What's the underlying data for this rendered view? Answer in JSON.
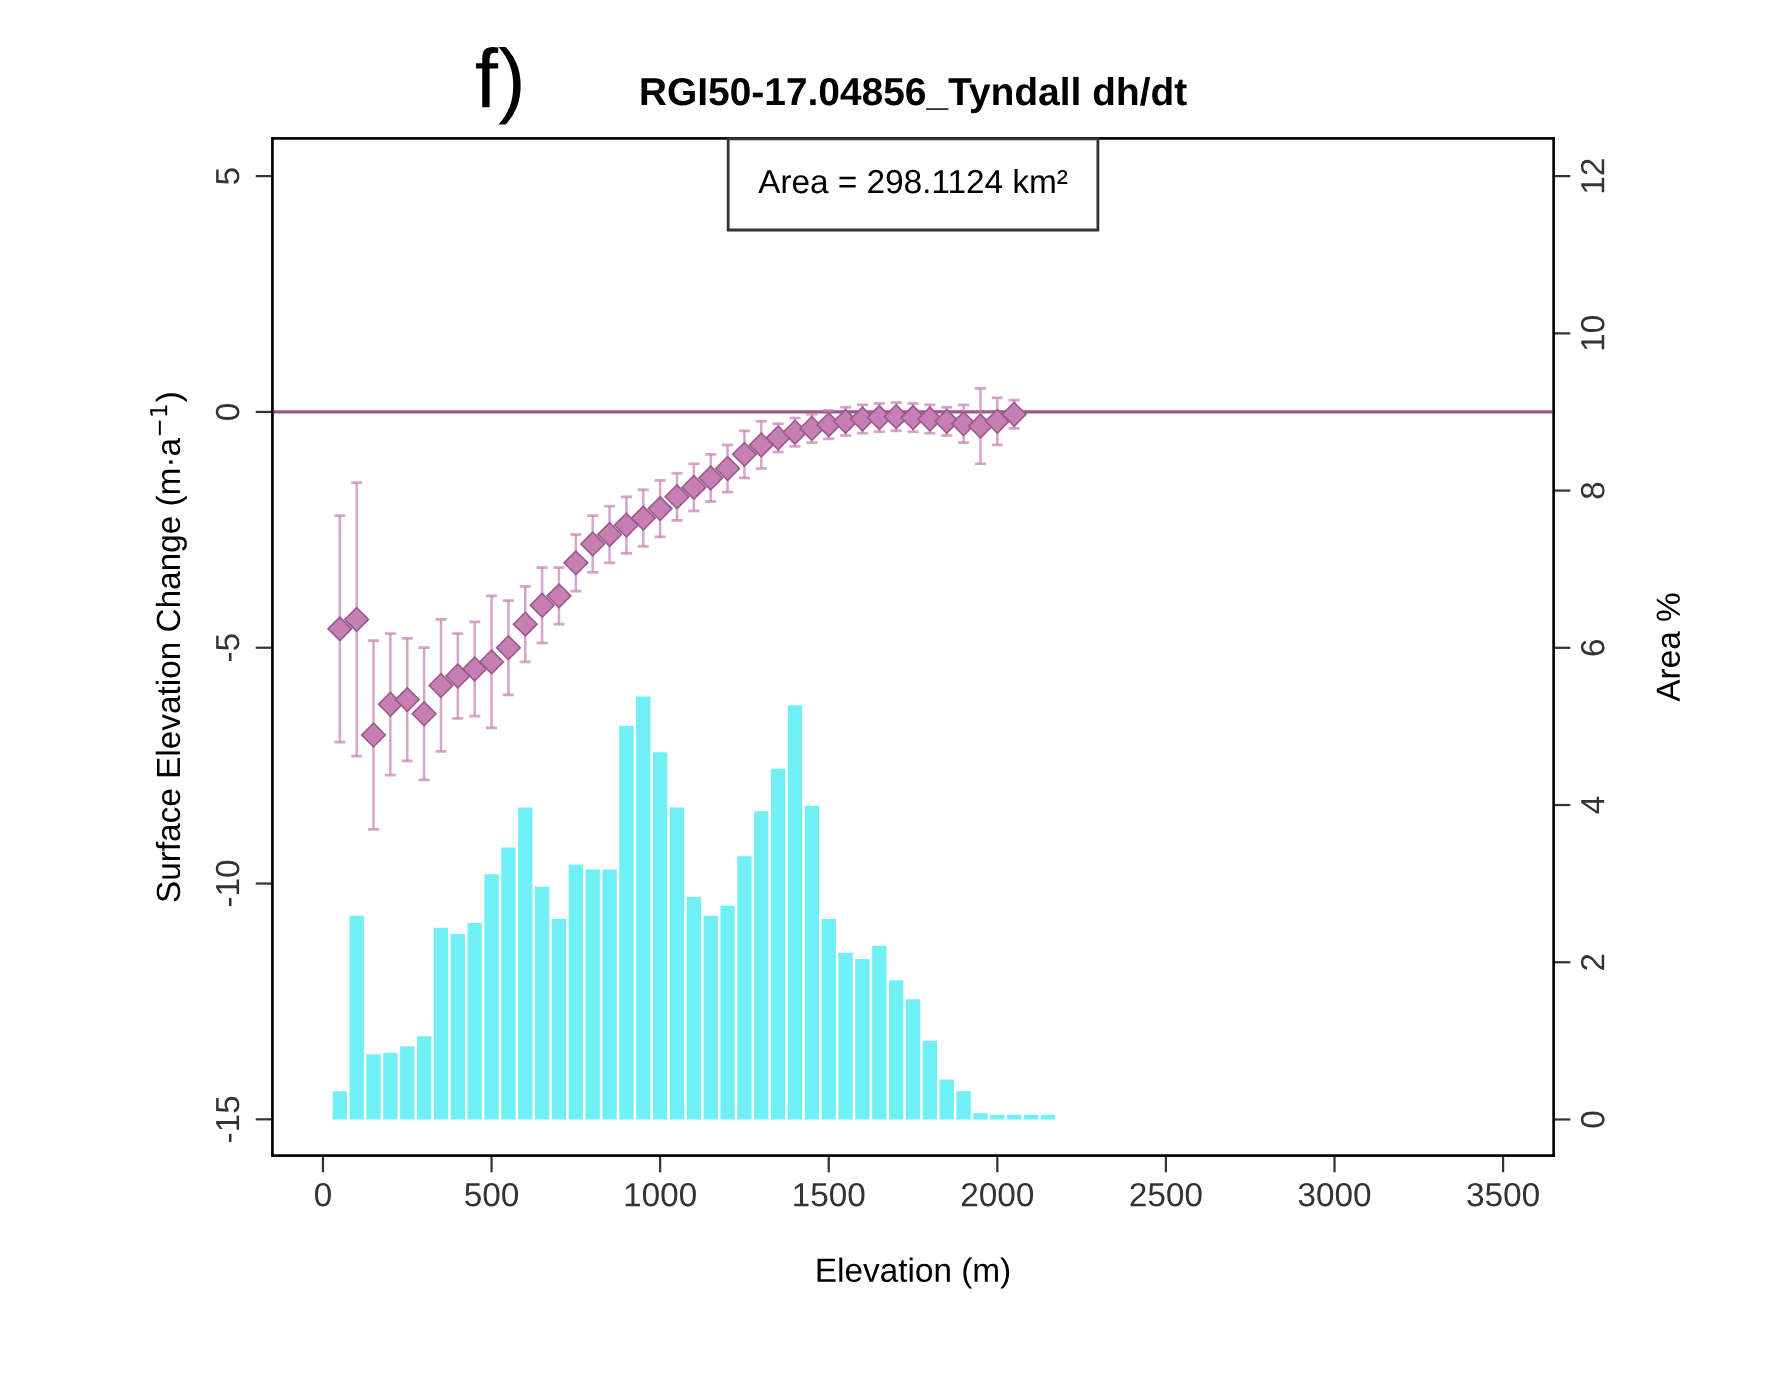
{
  "chart_data": {
    "type": "bar",
    "title": "RGI50-17.04856_Tyndall dh/dt",
    "xlabel": "Elevation (m)",
    "ylabel": "Surface Elevation Change (m·a$^{−1}$)",
    "y2label": "Area %",
    "annotations": [
      "f)",
      "Area = 298.1124 km²"
    ],
    "x": [
      50,
      100,
      150,
      200,
      250,
      300,
      350,
      400,
      450,
      500,
      550,
      600,
      650,
      700,
      750,
      800,
      850,
      900,
      950,
      1000,
      1050,
      1100,
      1150,
      1200,
      1250,
      1300,
      1350,
      1400,
      1450,
      1500,
      1550,
      1600,
      1650,
      1700,
      1750,
      1800,
      1850,
      1900,
      1950,
      2000,
      2050,
      2100,
      2150
    ],
    "series": [
      {
        "axis": "y2",
        "color": "#70f0f5",
        "values": [
          0.36,
          2.59,
          0.83,
          0.85,
          0.93,
          1.06,
          2.44,
          2.36,
          2.5,
          3.12,
          3.46,
          3.97,
          2.96,
          2.55,
          3.24,
          3.18,
          3.18,
          5.01,
          5.38,
          4.67,
          3.97,
          2.83,
          2.59,
          2.72,
          3.35,
          3.92,
          4.46,
          5.27,
          3.99,
          2.55,
          2.12,
          2.04,
          2.21,
          1.77,
          1.53,
          1.0,
          0.51,
          0.36,
          0.08,
          0.06,
          0.06,
          0.06,
          0.06
        ]
      },
      {
        "type": "scatter",
        "axis": "y",
        "marker": "diamond",
        "color": "#c77fb3",
        "x": [
          50,
          100,
          150,
          200,
          250,
          300,
          350,
          400,
          450,
          500,
          550,
          600,
          650,
          700,
          750,
          800,
          850,
          900,
          950,
          1000,
          1050,
          1100,
          1150,
          1200,
          1250,
          1300,
          1350,
          1400,
          1450,
          1500,
          1550,
          1600,
          1650,
          1700,
          1750,
          1800,
          1850,
          1900,
          1950,
          2000,
          2050
        ],
        "values": [
          -4.6,
          -4.4,
          -6.85,
          -6.2,
          -6.1,
          -6.4,
          -5.8,
          -5.6,
          -5.45,
          -5.3,
          -5.0,
          -4.5,
          -4.1,
          -3.9,
          -3.2,
          -2.8,
          -2.6,
          -2.4,
          -2.25,
          -2.05,
          -1.8,
          -1.6,
          -1.4,
          -1.2,
          -0.9,
          -0.7,
          -0.55,
          -0.43,
          -0.35,
          -0.27,
          -0.2,
          -0.15,
          -0.12,
          -0.1,
          -0.12,
          -0.15,
          -0.2,
          -0.25,
          -0.3,
          -0.2,
          -0.05
        ],
        "errors": [
          2.4,
          2.9,
          2.0,
          1.5,
          1.3,
          1.4,
          1.4,
          0.9,
          1.0,
          1.4,
          1.0,
          0.8,
          0.8,
          0.6,
          0.6,
          0.6,
          0.6,
          0.6,
          0.6,
          0.6,
          0.5,
          0.5,
          0.5,
          0.5,
          0.5,
          0.5,
          0.3,
          0.3,
          0.3,
          0.3,
          0.3,
          0.3,
          0.3,
          0.3,
          0.3,
          0.3,
          0.3,
          0.4,
          0.8,
          0.5,
          0.3
        ]
      }
    ],
    "xlim": [
      -150,
      3650
    ],
    "xticks": [
      0,
      500,
      1000,
      1500,
      2000,
      2500,
      3000,
      3500
    ],
    "ylim": [
      -15.77,
      5.8
    ],
    "yticks": [
      -15,
      -10,
      -5,
      0,
      5
    ],
    "y2lim": [
      -0.46,
      12.48
    ],
    "y2ticks": [
      0,
      2,
      4,
      6,
      8,
      10,
      12
    ],
    "ref_lines": [
      {
        "axis": "y",
        "value": 0,
        "color": "#9b5a8c"
      }
    ]
  }
}
